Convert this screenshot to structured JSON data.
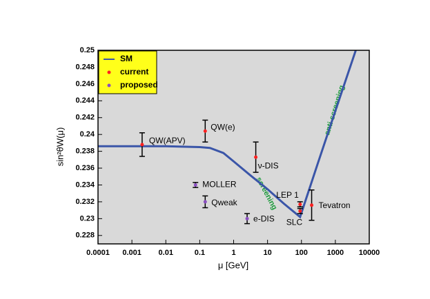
{
  "chart_data": {
    "type": "errorbar_log",
    "xlabel": "μ [GeV]",
    "ylabel": "sin²θW(μ)",
    "xscale": "log",
    "xlim": [
      0.0001,
      10000
    ],
    "xticks": [
      0.0001,
      0.001,
      0.01,
      0.1,
      1,
      10,
      100,
      1000,
      10000
    ],
    "ylim": [
      0.227,
      0.25
    ],
    "yticks": [
      0.228,
      0.23,
      0.232,
      0.234,
      0.236,
      0.238,
      0.24,
      0.242,
      0.244,
      0.246,
      0.248,
      0.25
    ],
    "legend_position": "upper left",
    "curve": {
      "name": "SM",
      "color": "#3a55a8",
      "x": [
        0.0001,
        0.01,
        0.1,
        0.2,
        0.5,
        1,
        3,
        10,
        30,
        91.2,
        300,
        1000,
        4000
      ],
      "values": [
        0.2386,
        0.2386,
        0.2385,
        0.2384,
        0.2378,
        0.2368,
        0.2352,
        0.2335,
        0.2318,
        0.2302,
        0.2365,
        0.2428,
        0.25
      ]
    },
    "series": [
      {
        "name": "current",
        "color": "#ff2020",
        "labels": [
          "QW(APV)",
          "QW(e)",
          "ν-DIS",
          "LEP 1",
          "SLC",
          "Tevatron"
        ],
        "x": [
          0.002,
          0.145,
          4.5,
          91.2,
          91.2,
          200
        ],
        "values": [
          0.2388,
          0.2404,
          0.2373,
          0.2317,
          0.2309,
          0.2316
        ],
        "errors": [
          0.0014,
          0.0013,
          0.0018,
          0.0003,
          0.0003,
          0.0018
        ]
      },
      {
        "name": "proposed",
        "color": "#8a4fc0",
        "labels": [
          "MOLLER",
          "Qweak",
          "e-DIS"
        ],
        "x": [
          0.075,
          0.145,
          2.5
        ],
        "values": [
          0.234,
          0.232,
          0.23
        ],
        "errors": [
          0.0003,
          0.0007,
          0.0006
        ]
      }
    ],
    "annotations": [
      "screening",
      "anti-screening"
    ]
  }
}
